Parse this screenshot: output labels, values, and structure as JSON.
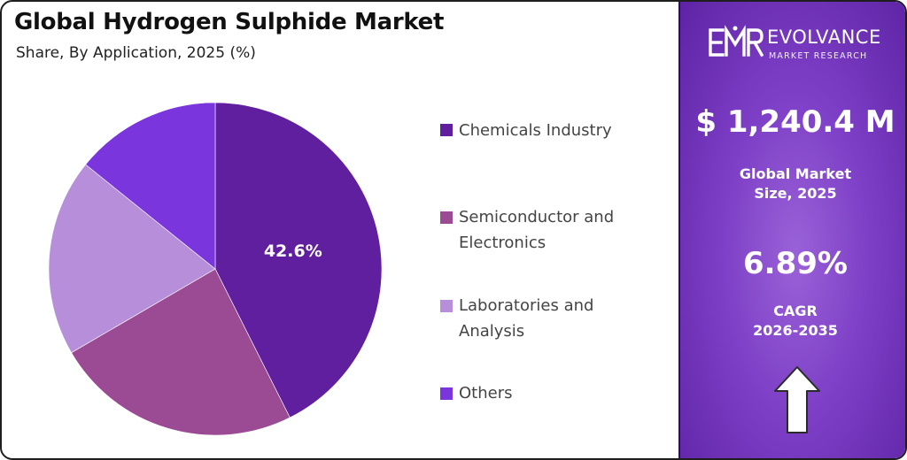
{
  "header": {
    "title": "Global Hydrogen Sulphide Market",
    "subtitle": "Share, By Application, 2025 (%)"
  },
  "chart_data": {
    "type": "pie",
    "title": "Global Hydrogen Sulphide Market",
    "subtitle": "Share, By Application, 2025 (%)",
    "categories": [
      "Chemicals Industry",
      "Semiconductor and Electronics",
      "Laboratories and Analysis",
      "Others"
    ],
    "values": [
      42.6,
      24.0,
      19.2,
      14.2
    ],
    "data_labels": [
      "42.6%",
      "",
      "",
      ""
    ],
    "colors": [
      "#5f1f9e",
      "#9b4a94",
      "#b68ed9",
      "#7b35dd"
    ],
    "legend_position": "right"
  },
  "legend": {
    "items": [
      {
        "label_lines": [
          "Chemicals Industry"
        ]
      },
      {
        "label_lines": [
          "Semiconductor and",
          "Electronics"
        ]
      },
      {
        "label_lines": [
          "Laboratories and",
          "Analysis"
        ]
      },
      {
        "label_lines": [
          "Others"
        ]
      }
    ]
  },
  "brand": {
    "logo_text": "EMR",
    "name": "EVOLVANCE",
    "tagline": "MARKET RESEARCH"
  },
  "stats": {
    "market_size_value": "$ 1,240.4 M",
    "market_size_label_lines": [
      "Global Market",
      "Size, 2025"
    ],
    "cagr_value": "6.89%",
    "cagr_label_lines": [
      "CAGR",
      "2026-2035"
    ]
  },
  "colors": {
    "panel_start": "#9a62d8",
    "panel_end": "#5e23a5",
    "text_dark": "#111111"
  }
}
